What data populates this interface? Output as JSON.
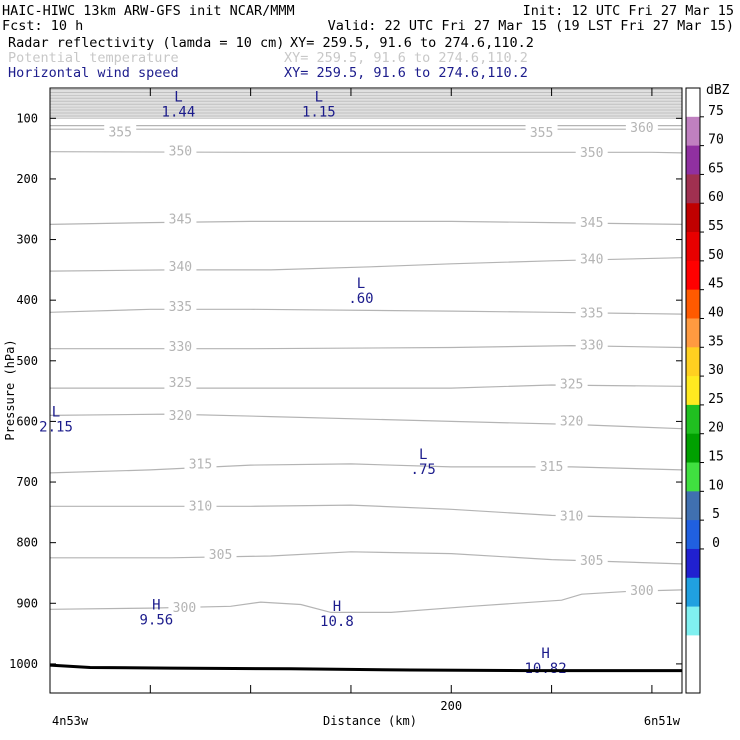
{
  "header": {
    "line1_left": "HAIC-HIWC 13km ARW-GFS init   NCAR/MMM",
    "line1_right": "Init: 12 UTC Fri 27 Mar 15",
    "line2_left": "Fcst:   10 h",
    "line2_right": "Valid: 22 UTC Fri 27 Mar 15 (19 LST Fri 27 Mar 15)",
    "fields": [
      {
        "name": "Radar reflectivity (lamda = 10 cm)",
        "xy": "XY= 259.5, 91.6 to 274.6,110.2",
        "color": "#000000"
      },
      {
        "name": "Potential temperature",
        "xy": "XY= 259.5, 91.6 to 274.6,110.2",
        "color": "#c8c8c8"
      },
      {
        "name": "Horizontal wind speed",
        "xy": "XY= 259.5, 91.6 to 274.6,110.2",
        "color": "#1c1c8c"
      }
    ]
  },
  "chart_data": {
    "type": "line",
    "xlabel": "Distance (km)",
    "ylabel": "Pressure (hPa)",
    "x_start_label": "4n53w",
    "x_end_label": "6n51w",
    "xlim": [
      0,
      315
    ],
    "ylim": [
      1048,
      50
    ],
    "x_ticks": [
      200
    ],
    "y_ticks": [
      100,
      200,
      300,
      400,
      500,
      600,
      700,
      800,
      900,
      1000
    ],
    "theta_contours": [
      {
        "level": 355,
        "points": [
          [
            0,
            118
          ],
          [
            100,
            118
          ],
          [
            200,
            118
          ],
          [
            300,
            118
          ],
          [
            315,
            118
          ]
        ],
        "labels": [
          [
            35,
            123
          ],
          [
            245,
            124
          ]
        ]
      },
      {
        "level": 360,
        "points": [
          [
            0,
            112
          ],
          [
            100,
            112
          ],
          [
            200,
            112
          ],
          [
            300,
            112
          ],
          [
            315,
            112
          ]
        ],
        "labels": [
          [
            295,
            116
          ]
        ]
      },
      {
        "level": 350,
        "points": [
          [
            0,
            155
          ],
          [
            100,
            156
          ],
          [
            200,
            156
          ],
          [
            300,
            156
          ],
          [
            315,
            157
          ]
        ],
        "labels": [
          [
            65,
            155
          ],
          [
            270,
            157
          ]
        ]
      },
      {
        "level": 345,
        "points": [
          [
            0,
            275
          ],
          [
            50,
            272
          ],
          [
            100,
            270
          ],
          [
            150,
            270
          ],
          [
            200,
            270
          ],
          [
            250,
            272
          ],
          [
            315,
            275
          ]
        ],
        "labels": [
          [
            65,
            267
          ],
          [
            270,
            273
          ]
        ]
      },
      {
        "level": 340,
        "points": [
          [
            0,
            352
          ],
          [
            60,
            350
          ],
          [
            110,
            350
          ],
          [
            160,
            345
          ],
          [
            200,
            340
          ],
          [
            250,
            335
          ],
          [
            315,
            330
          ]
        ],
        "labels": [
          [
            65,
            345
          ],
          [
            270,
            333
          ]
        ]
      },
      {
        "level": 335,
        "points": [
          [
            0,
            420
          ],
          [
            50,
            415
          ],
          [
            100,
            415
          ],
          [
            200,
            418
          ],
          [
            250,
            420
          ],
          [
            315,
            423
          ]
        ],
        "labels": [
          [
            65,
            411
          ],
          [
            270,
            422
          ]
        ]
      },
      {
        "level": 330,
        "points": [
          [
            0,
            480
          ],
          [
            100,
            480
          ],
          [
            200,
            478
          ],
          [
            260,
            475
          ],
          [
            315,
            478
          ]
        ],
        "labels": [
          [
            65,
            477
          ],
          [
            270,
            475
          ]
        ]
      },
      {
        "level": 325,
        "points": [
          [
            0,
            545
          ],
          [
            100,
            545
          ],
          [
            200,
            545
          ],
          [
            250,
            540
          ],
          [
            315,
            542
          ]
        ],
        "labels": [
          [
            65,
            537
          ],
          [
            260,
            539
          ]
        ]
      },
      {
        "level": 320,
        "points": [
          [
            0,
            590
          ],
          [
            60,
            588
          ],
          [
            110,
            592
          ],
          [
            200,
            600
          ],
          [
            260,
            605
          ],
          [
            315,
            612
          ]
        ],
        "labels": [
          [
            65,
            591
          ],
          [
            260,
            600
          ]
        ]
      },
      {
        "level": 315,
        "points": [
          [
            0,
            685
          ],
          [
            50,
            680
          ],
          [
            100,
            672
          ],
          [
            150,
            670
          ],
          [
            200,
            675
          ],
          [
            260,
            675
          ],
          [
            315,
            680
          ]
        ],
        "labels": [
          [
            75,
            671
          ],
          [
            250,
            675
          ]
        ]
      },
      {
        "level": 310,
        "points": [
          [
            0,
            740
          ],
          [
            50,
            740
          ],
          [
            100,
            740
          ],
          [
            150,
            738
          ],
          [
            200,
            745
          ],
          [
            250,
            755
          ],
          [
            315,
            760
          ]
        ],
        "labels": [
          [
            75,
            740
          ],
          [
            260,
            757
          ]
        ]
      },
      {
        "level": 305,
        "points": [
          [
            0,
            825
          ],
          [
            60,
            825
          ],
          [
            110,
            822
          ],
          [
            150,
            815
          ],
          [
            200,
            818
          ],
          [
            250,
            828
          ],
          [
            315,
            835
          ]
        ],
        "labels": [
          [
            85,
            820
          ],
          [
            270,
            830
          ]
        ]
      },
      {
        "level": 300,
        "points": [
          [
            0,
            910
          ],
          [
            50,
            908
          ],
          [
            90,
            905
          ],
          [
            105,
            898
          ],
          [
            125,
            902
          ],
          [
            140,
            915
          ],
          [
            170,
            915
          ],
          [
            210,
            905
          ],
          [
            255,
            895
          ],
          [
            265,
            885
          ],
          [
            290,
            880
          ],
          [
            315,
            878
          ]
        ],
        "labels": [
          [
            67,
            908
          ],
          [
            295,
            880
          ]
        ]
      }
    ],
    "wind_extrema": [
      {
        "type": "L",
        "value": "1.44",
        "x": 64,
        "p": 72
      },
      {
        "type": "L",
        "value": "1.15",
        "x": 134,
        "p": 72
      },
      {
        "type": "L",
        "value": ".60",
        "x": 155,
        "p": 380
      },
      {
        "type": "L",
        "value": "2.15",
        "x": 3,
        "p": 592
      },
      {
        "type": "L",
        "value": ".75",
        "x": 186,
        "p": 662
      },
      {
        "type": "H",
        "value": "9.56",
        "x": 53,
        "p": 910
      },
      {
        "type": "H",
        "value": "10.8",
        "x": 143,
        "p": 913
      },
      {
        "type": "H",
        "value": "10.82",
        "x": 247,
        "p": 990
      }
    ],
    "terrain": {
      "x": [
        0,
        20,
        60,
        120,
        180,
        240,
        315
      ],
      "p": [
        1002,
        1006,
        1007,
        1008,
        1010,
        1011,
        1011
      ],
      "color": "#000000"
    },
    "upper_band": {
      "p_from": 50,
      "p_to": 100,
      "color": "#c0c0c0"
    },
    "colorbar": {
      "unit": "dBZ",
      "labels": [
        "75",
        "70",
        "65",
        "60",
        "55",
        "50",
        "45",
        "40",
        "35",
        "30",
        "25",
        "20",
        "15",
        "10",
        "5",
        "0"
      ],
      "colors": [
        "#ffffff",
        "#c080c0",
        "#9030a0",
        "#a03050",
        "#c00000",
        "#e80000",
        "#ff0000",
        "#ff5a00",
        "#ff9a40",
        "#ffd020",
        "#ffea20",
        "#20c020",
        "#00a000",
        "#40e040",
        "#4070b0",
        "#2060e0",
        "#2020d0",
        "#20a0e0",
        "#80f0f0",
        "#ffffff",
        "#ffffff"
      ]
    }
  }
}
